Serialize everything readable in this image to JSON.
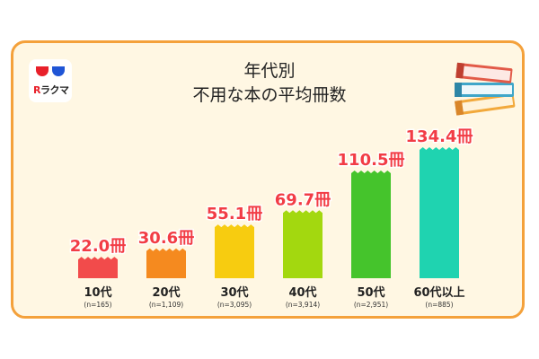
{
  "logo": {
    "brand_mark": "R",
    "brand_text": "ラクマ"
  },
  "chart_data": {
    "type": "bar",
    "title": [
      "年代別",
      "不用な本の平均冊数"
    ],
    "categories": [
      "10代",
      "20代",
      "30代",
      "40代",
      "50代",
      "60代以上"
    ],
    "sample_sizes": [
      "(n=165)",
      "(n=1,109)",
      "(n=3,095)",
      "(n=3,914)",
      "(n=2,951)",
      "(n=885)"
    ],
    "values": [
      22.0,
      30.6,
      55.1,
      69.7,
      110.5,
      134.4
    ],
    "value_labels": [
      "22.0冊",
      "30.6冊",
      "55.1冊",
      "69.7冊",
      "110.5冊",
      "134.4冊"
    ],
    "colors": [
      "#f24b4b",
      "#f58a1f",
      "#f7cc10",
      "#a3d80f",
      "#45c42c",
      "#1fd3b0"
    ],
    "label_color": "#f23c45",
    "xlabel": "",
    "ylabel": "",
    "ylim": [
      0,
      134.4
    ],
    "grid": false,
    "legend": "none"
  }
}
